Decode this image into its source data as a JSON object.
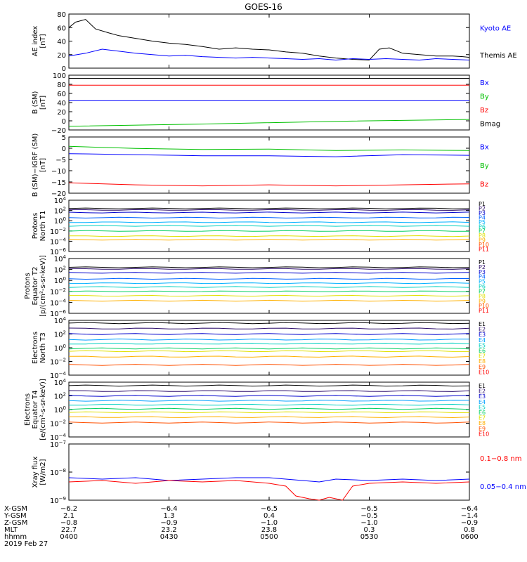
{
  "title": "GOES-16",
  "colors": {
    "P": [
      "#000000",
      "#2a0a6a",
      "#0000cc",
      "#0060ff",
      "#00b0ff",
      "#00d0c0",
      "#00d060",
      "#e0e000",
      "#ffb000",
      "#ff5000",
      "#ff0000"
    ],
    "E": [
      "#000000",
      "#2a0a6a",
      "#0000cc",
      "#00a0ff",
      "#00d0c0",
      "#00d060",
      "#e0e000",
      "#ffb000",
      "#ff5000",
      "#ff0000"
    ]
  },
  "chart_data": [
    {
      "type": "line",
      "id": "ae",
      "ylabel": [
        "AE index",
        "[nT]"
      ],
      "ylim": [
        0,
        80
      ],
      "yticks": [
        "0",
        "20",
        "40",
        "60",
        "80"
      ],
      "legend": [
        {
          "name": "Kyoto AE",
          "color": "#0000ff"
        },
        {
          "name": "Themis AE",
          "color": "#000000"
        }
      ],
      "series": [
        {
          "name": "Themis AE",
          "color": "#000000",
          "x": [
            0,
            2,
            5,
            8,
            12,
            15,
            20,
            25,
            30,
            35,
            40,
            45,
            50,
            55,
            60,
            65,
            70,
            75,
            80,
            85,
            90,
            93,
            96,
            100,
            105,
            110,
            115,
            118,
            120
          ],
          "y": [
            60,
            68,
            72,
            58,
            52,
            48,
            44,
            40,
            37,
            35,
            32,
            28,
            30,
            28,
            27,
            24,
            22,
            18,
            15,
            13,
            12,
            28,
            30,
            22,
            20,
            18,
            18,
            17,
            16
          ]
        },
        {
          "name": "Kyoto AE",
          "color": "#0000ff",
          "x": [
            0,
            5,
            10,
            15,
            20,
            25,
            30,
            35,
            40,
            45,
            50,
            55,
            60,
            65,
            70,
            75,
            80,
            85,
            90,
            95,
            100,
            105,
            110,
            115,
            120
          ],
          "y": [
            18,
            22,
            28,
            25,
            22,
            20,
            18,
            19,
            17,
            16,
            15,
            16,
            15,
            14,
            13,
            14,
            12,
            14,
            13,
            14,
            13,
            12,
            14,
            13,
            12
          ]
        }
      ]
    },
    {
      "type": "line",
      "id": "bsm",
      "ylabel": [
        "B (SM)",
        "[nT]"
      ],
      "ylim": [
        -20,
        100
      ],
      "yticks": [
        "−20",
        "0",
        "20",
        "40",
        "60",
        "80",
        "100"
      ],
      "legend": [
        {
          "name": "Bx",
          "color": "#0000ff"
        },
        {
          "name": "By",
          "color": "#00c000"
        },
        {
          "name": "Bz",
          "color": "#ff0000"
        },
        {
          "name": "Bmag",
          "color": "#000000"
        }
      ],
      "series": [
        {
          "name": "Bmag",
          "color": "#000000",
          "x": [
            0,
            120
          ],
          "y": [
            93,
            93
          ]
        },
        {
          "name": "Bz",
          "color": "#ff0000",
          "x": [
            0,
            120
          ],
          "y": [
            78,
            78
          ]
        },
        {
          "name": "Bx",
          "color": "#0000ff",
          "x": [
            0,
            120
          ],
          "y": [
            44,
            44
          ]
        },
        {
          "name": "By",
          "color": "#00c000",
          "x": [
            0,
            40,
            80,
            120
          ],
          "y": [
            -12,
            -7,
            -1,
            3
          ]
        }
      ]
    },
    {
      "type": "line",
      "id": "bres",
      "ylabel": [
        "B (SM)−IGRF (SM)",
        "[nT]"
      ],
      "ylim": [
        -22,
        5
      ],
      "yticks": [
        "−20",
        "−15",
        "−10",
        "−5",
        "0",
        "5"
      ],
      "legend": [
        {
          "name": "Bx",
          "color": "#0000ff"
        },
        {
          "name": "By",
          "color": "#00c000"
        },
        {
          "name": "Bz",
          "color": "#ff0000"
        }
      ],
      "series": [
        {
          "name": "By",
          "color": "#00c000",
          "x": [
            0,
            20,
            40,
            60,
            80,
            100,
            120
          ],
          "y": [
            0.5,
            -0.5,
            -1,
            -0.8,
            -1.5,
            -1.2,
            -1.5
          ]
        },
        {
          "name": "Bx",
          "color": "#0000ff",
          "x": [
            0,
            20,
            40,
            60,
            80,
            100,
            120
          ],
          "y": [
            -3,
            -3.5,
            -4,
            -4,
            -4.5,
            -3.5,
            -3.8
          ]
        },
        {
          "name": "Bz",
          "color": "#ff0000",
          "x": [
            0,
            20,
            40,
            60,
            80,
            100,
            120
          ],
          "y": [
            -17,
            -18,
            -18.5,
            -18,
            -18.5,
            -18,
            -17.5
          ]
        }
      ]
    },
    {
      "type": "log",
      "id": "pn",
      "ylabel": [
        "Protons",
        "North T1"
      ],
      "ylim_exp": [
        -6,
        4
      ],
      "ytick_exps": [
        -6,
        -4,
        -2,
        0,
        2,
        4
      ],
      "channels": [
        "P1",
        "P2",
        "P3",
        "P4",
        "P5",
        "P6",
        "P7",
        "P8",
        "P9",
        "P10",
        "P11"
      ],
      "levels": [
        2.4,
        2.1,
        1.6,
        0.6,
        -0.3,
        -1.0,
        -2.0,
        -3.0,
        -3.7,
        -5.2,
        -5.6
      ],
      "drawn": [
        1,
        1,
        1,
        1,
        1,
        1,
        1,
        1,
        1,
        0,
        0
      ]
    },
    {
      "type": "log",
      "id": "pe",
      "ylabel": [
        "Protons",
        "Equator T2",
        "[p/(cm²-s-sr-keV)]"
      ],
      "ylim_exp": [
        -6,
        4
      ],
      "ytick_exps": [
        -6,
        -4,
        -2,
        0,
        2,
        4
      ],
      "channels": [
        "P1",
        "P2",
        "P3",
        "P4",
        "P5",
        "P6",
        "P7",
        "P8",
        "P9",
        "P10",
        "P11"
      ],
      "levels": [
        2.4,
        2.1,
        1.4,
        0.3,
        -0.5,
        -1.2,
        -2.0,
        -2.8,
        -3.7,
        -5.2,
        -5.6
      ],
      "drawn": [
        1,
        1,
        1,
        1,
        1,
        1,
        1,
        1,
        1,
        0,
        0
      ]
    },
    {
      "type": "log",
      "id": "en",
      "ylabel": [
        "Electrons",
        "North T3"
      ],
      "ylim_exp": [
        -4,
        4
      ],
      "ytick_exps": [
        -4,
        -2,
        0,
        2,
        4
      ],
      "channels": [
        "E1",
        "E2",
        "E3",
        "E4",
        "E5",
        "E6",
        "E7",
        "E8",
        "E9",
        "E10"
      ],
      "levels": [
        3.6,
        2.8,
        2.0,
        1.2,
        0.6,
        -0.1,
        -0.5,
        -1.3,
        -2.5,
        -3.8
      ],
      "drawn": [
        1,
        1,
        1,
        1,
        1,
        1,
        1,
        1,
        1,
        0
      ]
    },
    {
      "type": "log",
      "id": "ee",
      "ylabel": [
        "Electrons",
        "Equator T4",
        "[e/(cm²-s-sr-keV)]"
      ],
      "ylim_exp": [
        -4,
        4
      ],
      "ytick_exps": [
        -4,
        -2,
        0,
        2,
        4
      ],
      "channels": [
        "E1",
        "E2",
        "E3",
        "E4",
        "E5",
        "E6",
        "E7",
        "E8",
        "E9",
        "E10"
      ],
      "levels": [
        3.5,
        2.7,
        2.0,
        1.3,
        0.7,
        0.1,
        -0.4,
        -1.1,
        -1.9,
        -3.8
      ],
      "drawn": [
        1,
        1,
        1,
        1,
        1,
        1,
        1,
        1,
        1,
        0
      ]
    },
    {
      "type": "log",
      "id": "xray",
      "ylabel": [
        "Xray flux",
        "[W/m2]"
      ],
      "ylim_exp": [
        -9,
        -7
      ],
      "ytick_exps": [
        -9,
        -8,
        -7
      ],
      "legend": [
        {
          "name": "0.1−0.8 nm",
          "color": "#ff0000"
        },
        {
          "name": "0.05−0.4 nm",
          "color": "#0000ff"
        }
      ],
      "series": [
        {
          "name": "0.05−0.4 nm",
          "color": "#0000ff",
          "x": [
            0,
            10,
            20,
            30,
            40,
            50,
            60,
            70,
            75,
            80,
            90,
            100,
            110,
            120
          ],
          "y": [
            -8.2,
            -8.25,
            -8.2,
            -8.3,
            -8.25,
            -8.2,
            -8.2,
            -8.3,
            -8.35,
            -8.25,
            -8.3,
            -8.25,
            -8.3,
            -8.25
          ]
        },
        {
          "name": "0.1−0.8 nm",
          "color": "#ff0000",
          "x": [
            0,
            10,
            20,
            30,
            40,
            50,
            60,
            65,
            68,
            72,
            75,
            78,
            82,
            85,
            90,
            100,
            110,
            120
          ],
          "y": [
            -8.35,
            -8.3,
            -8.4,
            -8.3,
            -8.35,
            -8.3,
            -8.4,
            -8.5,
            -8.85,
            -8.95,
            -9.0,
            -8.9,
            -9.0,
            -8.5,
            -8.4,
            -8.35,
            -8.4,
            -8.35
          ]
        }
      ]
    }
  ],
  "xaxis": {
    "rows": [
      {
        "label": "X-GSM",
        "values": [
          "−6.2",
          "−6.4",
          "−6.5",
          "−6.5",
          "−6.4"
        ]
      },
      {
        "label": "Y-GSM",
        "values": [
          "2.1",
          "1.3",
          "0.4",
          "−0.5",
          "−1.4"
        ]
      },
      {
        "label": "Z-GSM",
        "values": [
          "−0.8",
          "−0.9",
          "−1.0",
          "−1.0",
          "−0.9"
        ]
      },
      {
        "label": "MLT",
        "values": [
          "22.7",
          "23.2",
          "23.8",
          "0.3",
          "0.8"
        ]
      },
      {
        "label": "hhmm",
        "values": [
          "0400",
          "0430",
          "0500",
          "0530",
          "0600"
        ]
      }
    ],
    "date": "2019 Feb 27",
    "xlim_minutes": [
      0,
      120
    ]
  }
}
